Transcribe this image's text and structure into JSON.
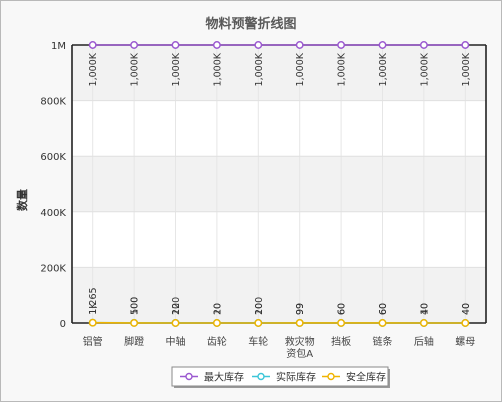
{
  "chart_data": {
    "type": "line",
    "title": "物料预警折线图",
    "xlabel": "",
    "ylabel": "数量",
    "ylim": [
      0,
      1000000
    ],
    "yticks": [
      {
        "value": 0,
        "label": "0"
      },
      {
        "value": 200000,
        "label": "200K"
      },
      {
        "value": 400000,
        "label": "400K"
      },
      {
        "value": 600000,
        "label": "600K"
      },
      {
        "value": 800000,
        "label": "800K"
      },
      {
        "value": 1000000,
        "label": "1M"
      }
    ],
    "categories": [
      "铝管",
      "脚蹬",
      "中轴",
      "齿轮",
      "车轮",
      "救灾物资包A",
      "挡板",
      "链条",
      "后轴",
      "螺母"
    ],
    "category_lines": [
      [
        "铝管"
      ],
      [
        "脚蹬"
      ],
      [
        "中轴"
      ],
      [
        "齿轮"
      ],
      [
        "车轮"
      ],
      [
        "救灾物",
        "资包A"
      ],
      [
        "挡板"
      ],
      [
        "链条"
      ],
      [
        "后轴"
      ],
      [
        "螺母"
      ]
    ],
    "series": [
      {
        "name": "最大库存",
        "color": "#9b59d0",
        "values": [
          1000000,
          1000000,
          1000000,
          1000000,
          1000000,
          1000000,
          1000000,
          1000000,
          1000000,
          1000000
        ],
        "labels": [
          "1,000K",
          "1,000K",
          "1,000K",
          "1,000K",
          "1,000K",
          "1,000K",
          "1,000K",
          "1,000K",
          "1,000K",
          "1,000K"
        ]
      },
      {
        "name": "实际库存",
        "color": "#3cc6d8",
        "values": [
          1265,
          500,
          120,
          20,
          100,
          99,
          60,
          60,
          40,
          40
        ],
        "labels": [
          "1,265",
          "500",
          "120",
          "20",
          "100",
          "99",
          "60",
          "60",
          "40",
          "40"
        ]
      },
      {
        "name": "安全库存",
        "color": "#f0b400",
        "values": [
          1000,
          100,
          20,
          10,
          20,
          99,
          60,
          60,
          10,
          40
        ],
        "labels": [
          "1K",
          "100",
          "20",
          "10",
          "20",
          "99",
          "60",
          "60",
          "10",
          "40"
        ]
      }
    ],
    "legend_position": "bottom"
  }
}
